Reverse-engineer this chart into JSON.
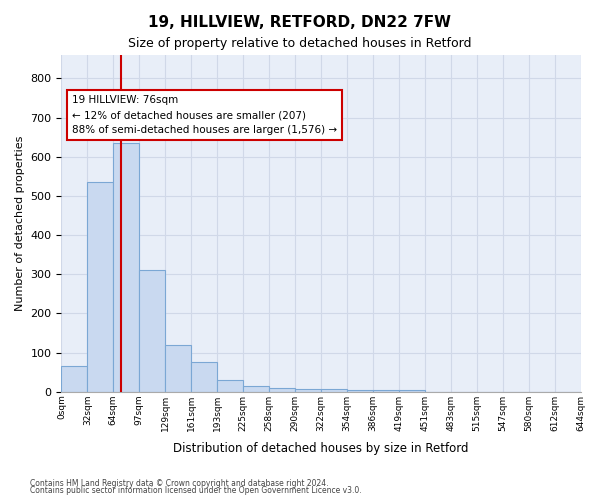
{
  "title1": "19, HILLVIEW, RETFORD, DN22 7FW",
  "title2": "Size of property relative to detached houses in Retford",
  "xlabel": "Distribution of detached houses by size in Retford",
  "ylabel": "Number of detached properties",
  "bar_values": [
    65,
    535,
    635,
    310,
    120,
    75,
    30,
    15,
    10,
    8,
    7,
    5,
    5,
    5,
    0,
    0,
    0,
    0,
    0,
    0
  ],
  "bin_edges": [
    "0sqm",
    "32sqm",
    "64sqm",
    "97sqm",
    "129sqm",
    "161sqm",
    "193sqm",
    "225sqm",
    "258sqm",
    "290sqm",
    "322sqm",
    "354sqm",
    "386sqm",
    "419sqm",
    "451sqm",
    "483sqm",
    "515sqm",
    "547sqm",
    "580sqm",
    "612sqm",
    "644sqm"
  ],
  "bar_color": "#c9d9f0",
  "bar_edge_color": "#7ba7d4",
  "grid_color": "#d0d8e8",
  "bg_color": "#e8eef8",
  "annotation_text": "19 HILLVIEW: 76sqm\n← 12% of detached houses are smaller (207)\n88% of semi-detached houses are larger (1,576) →",
  "vline_x": 2.3,
  "annotation_box_color": "#ffffff",
  "annotation_box_edge": "#cc0000",
  "ylim": [
    0,
    860
  ],
  "yticks": [
    0,
    100,
    200,
    300,
    400,
    500,
    600,
    700,
    800
  ],
  "footer1": "Contains HM Land Registry data © Crown copyright and database right 2024.",
  "footer2": "Contains public sector information licensed under the Open Government Licence v3.0."
}
